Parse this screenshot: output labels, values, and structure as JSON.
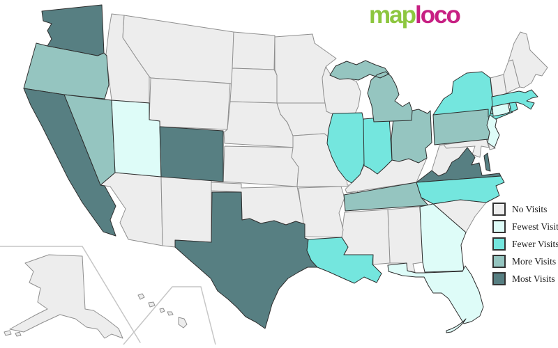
{
  "logo": {
    "text_green": "map",
    "text_pink": "loco",
    "green": "#8dc63f",
    "pink": "#c72083"
  },
  "legend": {
    "items": [
      {
        "key": "no",
        "label": "No Visits"
      },
      {
        "key": "fewest",
        "label": "Fewest Visits"
      },
      {
        "key": "fewer",
        "label": "Fewer Visits"
      },
      {
        "key": "more",
        "label": "More Visits"
      },
      {
        "key": "most",
        "label": "Most Visits"
      }
    ]
  },
  "colors": {
    "no": "#ededed",
    "fewest": "#defcf8",
    "fewer": "#74e6de",
    "more": "#95c5c0",
    "most": "#577f82"
  },
  "borders": {
    "no": "#8f8f8f",
    "colored": "#2e2e2e",
    "inset": "#c6c6c6"
  },
  "states": {
    "WA": {
      "name": "Washington",
      "level": "most"
    },
    "OR": {
      "name": "Oregon",
      "level": "more"
    },
    "CA": {
      "name": "California",
      "level": "most"
    },
    "NV": {
      "name": "Nevada",
      "level": "more"
    },
    "ID": {
      "name": "Idaho",
      "level": "no"
    },
    "UT": {
      "name": "Utah",
      "level": "fewest"
    },
    "AZ": {
      "name": "Arizona",
      "level": "no"
    },
    "MT": {
      "name": "Montana",
      "level": "no"
    },
    "WY": {
      "name": "Wyoming",
      "level": "no"
    },
    "CO": {
      "name": "Colorado",
      "level": "most"
    },
    "NM": {
      "name": "New Mexico",
      "level": "no"
    },
    "ND": {
      "name": "North Dakota",
      "level": "no"
    },
    "SD": {
      "name": "South Dakota",
      "level": "no"
    },
    "NE": {
      "name": "Nebraska",
      "level": "no"
    },
    "KS": {
      "name": "Kansas",
      "level": "no"
    },
    "OK": {
      "name": "Oklahoma",
      "level": "no"
    },
    "TX": {
      "name": "Texas",
      "level": "most"
    },
    "MN": {
      "name": "Minnesota",
      "level": "no"
    },
    "IA": {
      "name": "Iowa",
      "level": "no"
    },
    "MO": {
      "name": "Missouri",
      "level": "no"
    },
    "WI": {
      "name": "Wisconsin",
      "level": "no"
    },
    "IL": {
      "name": "Illinois",
      "level": "fewer"
    },
    "IN": {
      "name": "Indiana",
      "level": "fewer"
    },
    "OH": {
      "name": "Ohio",
      "level": "more"
    },
    "MI": {
      "name": "Michigan",
      "level": "more"
    },
    "KY": {
      "name": "Kentucky",
      "level": "no"
    },
    "TN": {
      "name": "Tennessee",
      "level": "more"
    },
    "WV": {
      "name": "West Virginia",
      "level": "no"
    },
    "VA": {
      "name": "Virginia",
      "level": "most"
    },
    "NC": {
      "name": "North Carolina",
      "level": "fewer"
    },
    "SC": {
      "name": "South Carolina",
      "level": "no"
    },
    "GA": {
      "name": "Georgia",
      "level": "fewest"
    },
    "AL": {
      "name": "Alabama",
      "level": "no"
    },
    "MS": {
      "name": "Mississippi",
      "level": "no"
    },
    "AR": {
      "name": "Arkansas",
      "level": "no"
    },
    "LA": {
      "name": "Louisiana",
      "level": "fewer"
    },
    "FL": {
      "name": "Florida",
      "level": "fewest"
    },
    "PA": {
      "name": "Pennsylvania",
      "level": "more"
    },
    "NY": {
      "name": "New York",
      "level": "fewer"
    },
    "NJ": {
      "name": "New Jersey",
      "level": "fewest"
    },
    "CT": {
      "name": "Connecticut",
      "level": "fewest"
    },
    "RI": {
      "name": "Rhode Island",
      "level": "fewer"
    },
    "MA": {
      "name": "Massachusetts",
      "level": "fewer"
    },
    "VT": {
      "name": "Vermont",
      "level": "no"
    },
    "NH": {
      "name": "New Hampshire",
      "level": "no"
    },
    "ME": {
      "name": "Maine",
      "level": "no"
    },
    "MD": {
      "name": "Maryland",
      "level": "no"
    },
    "DE": {
      "name": "Delaware",
      "level": "no"
    },
    "AK": {
      "name": "Alaska",
      "level": "no"
    },
    "HI": {
      "name": "Hawaii",
      "level": "no"
    }
  }
}
